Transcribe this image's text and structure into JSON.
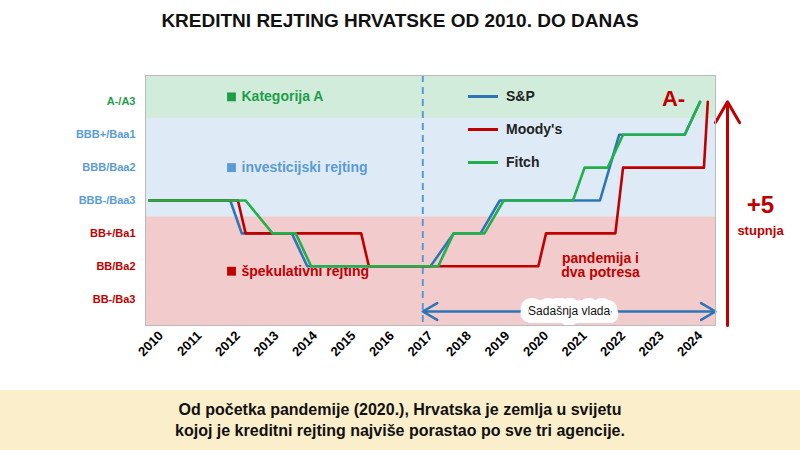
{
  "chart_data": {
    "type": "line",
    "title": "KREDITNI REJTING HRVATSKE OD 2010. DO DANAS",
    "caption": "Od početka pandemije (2020.), Hrvatska je zemlja u svijetu\nkojoj je kreditni rejting najviše porastao po sve tri agencije.",
    "xlim": [
      2009.6,
      2024.4
    ],
    "xticks": [
      2010,
      2011,
      2012,
      2013,
      2014,
      2015,
      2016,
      2017,
      2018,
      2019,
      2020,
      2021,
      2022,
      2023,
      2024
    ],
    "ylim": [
      0.2,
      7.8
    ],
    "yticks": [
      {
        "value": 1,
        "label": "BB-/Ba3"
      },
      {
        "value": 2,
        "label": "BB/Ba2"
      },
      {
        "value": 3,
        "label": "BB+/Ba1"
      },
      {
        "value": 4,
        "label": "BBB-/Baa3"
      },
      {
        "value": 5,
        "label": "BBB/Baa2"
      },
      {
        "value": 6,
        "label": "BBB+/Baa1"
      },
      {
        "value": 7,
        "label": "A-/A3"
      }
    ],
    "grid": false,
    "legend": "top",
    "bands": [
      {
        "label": "Kategorija A",
        "from": 6.5,
        "to": 7.8,
        "color": "#1f9e4a"
      },
      {
        "label": "investicijski rejting",
        "from": 3.5,
        "to": 6.5,
        "color": "#5b9bd5"
      },
      {
        "label": "špekulativni rejting",
        "from": 0.2,
        "to": 3.5,
        "color": "#c00000"
      }
    ],
    "series": [
      {
        "name": "S&P",
        "color": "#2e75b6",
        "x": [
          2009.7,
          2011.8,
          2012.1,
          2013.4,
          2013.8,
          2017.0,
          2017.6,
          2018.3,
          2018.8,
          2021.4,
          2021.9,
          2023.6,
          2024.0
        ],
        "values": [
          4,
          4,
          3,
          3,
          2,
          2,
          3,
          3,
          4,
          4,
          6,
          6,
          7
        ]
      },
      {
        "name": "Moody's",
        "color": "#c00000",
        "x": [
          2009.7,
          2012.0,
          2012.2,
          2015.2,
          2015.4,
          2019.8,
          2020.0,
          2021.8,
          2022.0,
          2024.1,
          2024.2
        ],
        "values": [
          4,
          4,
          3,
          3,
          2,
          2,
          3,
          3,
          5,
          5,
          7
        ]
      },
      {
        "name": "Fitch",
        "color": "#22b04b",
        "x": [
          2009.7,
          2012.2,
          2012.9,
          2013.5,
          2013.9,
          2017.2,
          2017.6,
          2018.4,
          2018.9,
          2020.7,
          2021.0,
          2021.6,
          2022.0,
          2023.6,
          2024.0
        ],
        "values": [
          4,
          4,
          3,
          3,
          2,
          2,
          3,
          3,
          4,
          4,
          5,
          5,
          6,
          6,
          7
        ]
      }
    ],
    "annotations": {
      "rating": "A-",
      "change": "+5",
      "change_unit": "stupnja",
      "event": "pandemija i\ndva potresa",
      "period": {
        "label": "Sadašnja vlada",
        "start": 2016.8
      }
    }
  }
}
